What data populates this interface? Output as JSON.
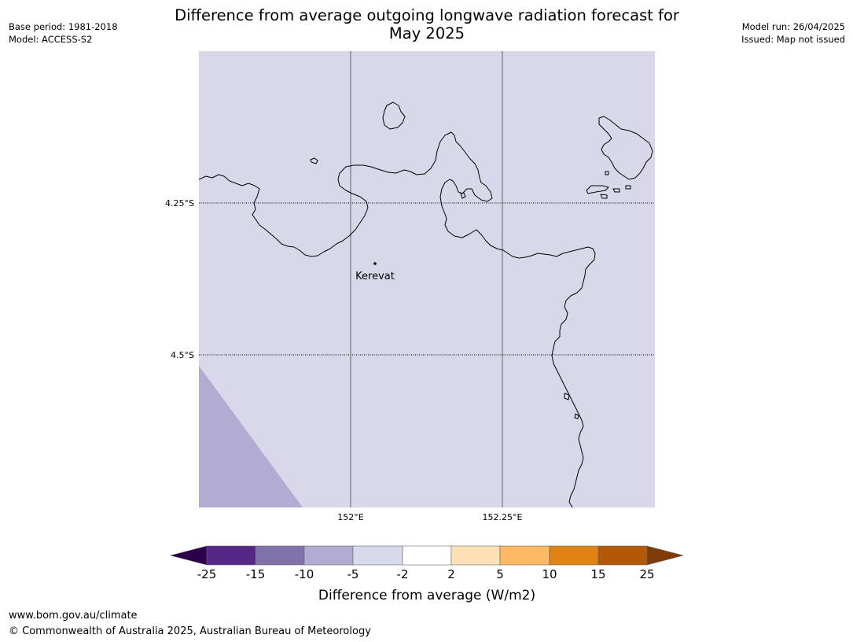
{
  "meta": {
    "base_period": "Base period: 1981-2018",
    "model": "Model: ACCESS-S2",
    "model_run": "Model run: 26/04/2025",
    "issued": "Issued: Map not issued"
  },
  "title_line1": "Difference from average outgoing longwave radiation forecast for",
  "title_line2": "May 2025",
  "map": {
    "lat_labels": [
      "4.25°S",
      "4.5°S"
    ],
    "lon_labels": [
      "152°E",
      "152.25°E"
    ],
    "place_label": "Kerevat",
    "colors": {
      "background_class": "#d8d8ea",
      "lower_class": "#b2abd2",
      "coastline": "#000000"
    }
  },
  "colorbar": {
    "ticks": [
      "-25",
      "-15",
      "-10",
      "-5",
      "-2",
      "2",
      "5",
      "10",
      "15",
      "25"
    ],
    "colors": [
      "#2d004b",
      "#542788",
      "#8073ac",
      "#b2abd2",
      "#d8daeb",
      "#ffffff",
      "#fee0b6",
      "#fdb863",
      "#e08214",
      "#b35806",
      "#7f3b08"
    ],
    "label": "Difference from average (W/m2)"
  },
  "footer": {
    "url": "www.bom.gov.au/climate",
    "copyright": "© Commonwealth of Australia 2025, Australian Bureau of Meteorology"
  }
}
